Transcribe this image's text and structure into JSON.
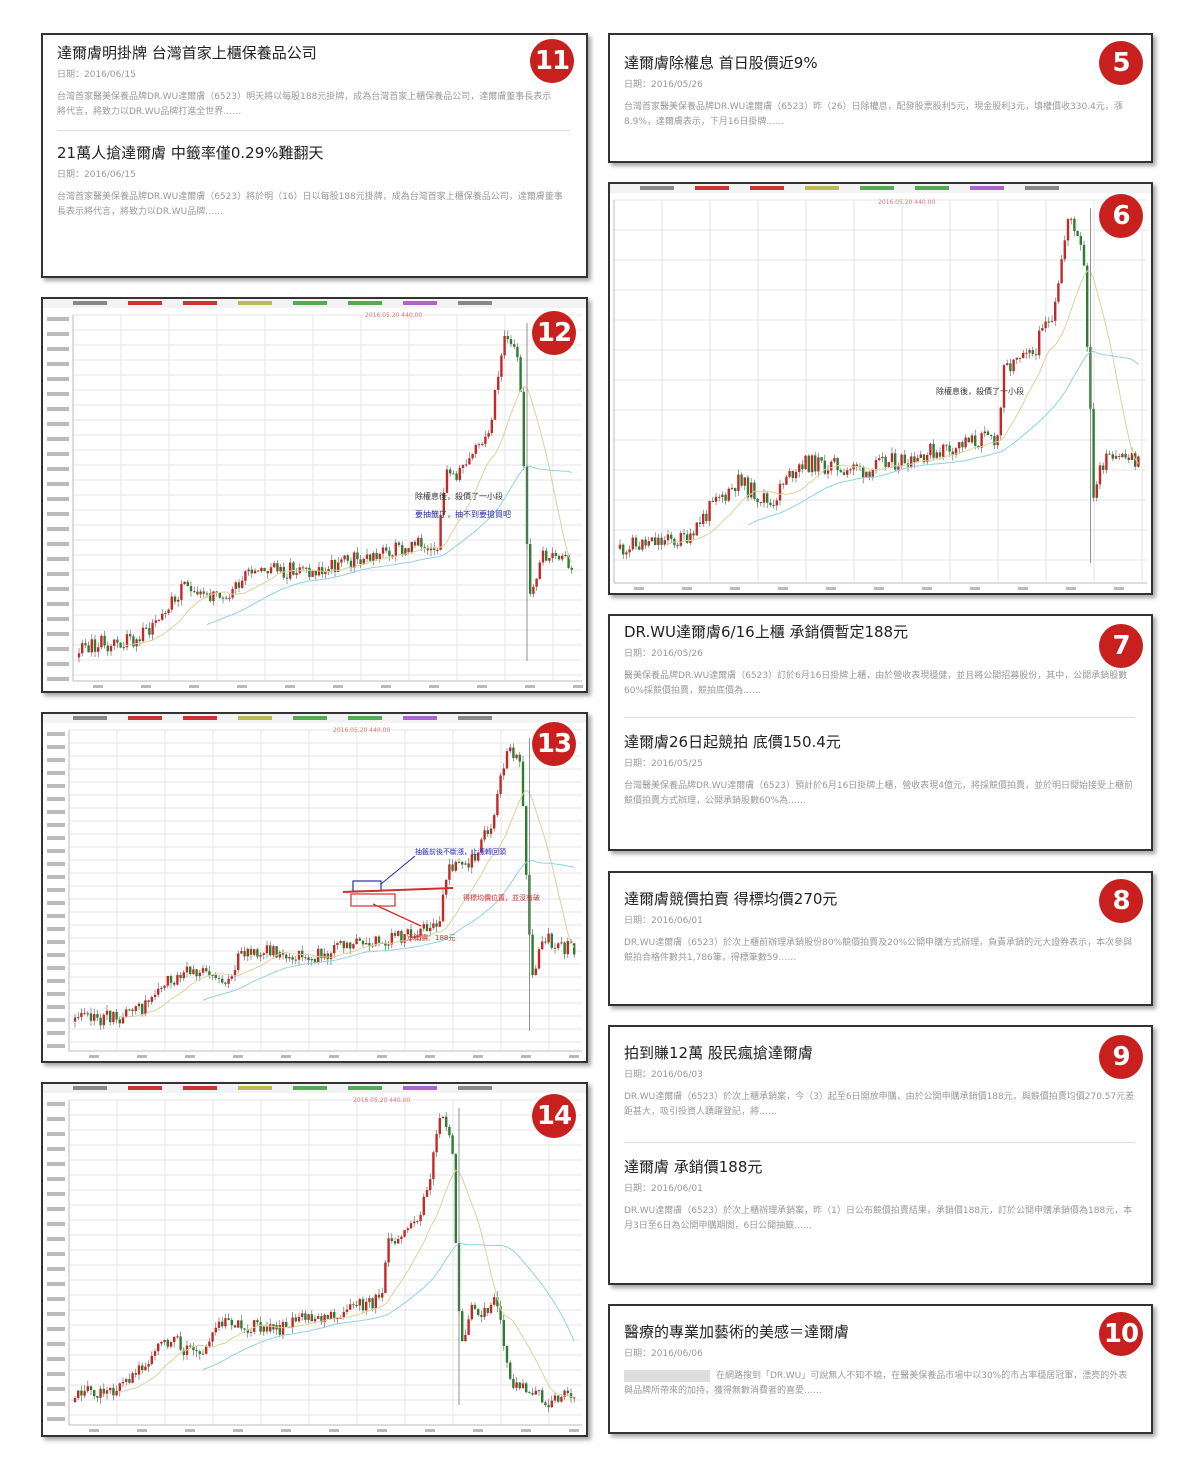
{
  "colors": {
    "badge": "#c8201e",
    "up": "#c62828",
    "down": "#2e7d32",
    "ma_short": "#d9d49a",
    "ma_long": "#8fd3e0",
    "note_blue": "#2b2ba8",
    "note_red": "#d32f2f"
  },
  "panels": {
    "p11": {
      "num": "11",
      "items": [
        {
          "title": "達爾膚明掛牌 台灣首家上櫃保養品公司",
          "date": "日期：2016/06/15",
          "body": "台灣首家醫美保養品牌DR.WU達爾膚（6523）明天將以每股188元掛牌，成為台灣首家上櫃保養品公司，達爾膚董事長表示將代言，將致力以DR.WU品牌打進全世界……"
        },
        {
          "title": "21萬人搶達爾膚 中籤率僅0.29%難翻天",
          "date": "日期：2016/06/15",
          "body": "台灣首家醫美保養品牌DR.WU達爾膚（6523）將於明（16）日以每股188元掛牌，成為台灣首家上櫃保養品公司，達爾膚董事長表示將代言，將致力以DR.WU品牌……"
        }
      ]
    },
    "p5": {
      "num": "5",
      "items": [
        {
          "title": "達爾膚除權息 首日股價近9%",
          "date": "日期：2016/05/26",
          "body": "台灣首家醫美保養品牌DR.WU達爾膚（6523）昨（26）日除權息，配發股票股利5元，現金股利3元，填權價收330.4元，漲8.9%，達爾膚表示，下月16日掛牌……"
        }
      ]
    },
    "p7": {
      "num": "7",
      "items": [
        {
          "title": "DR.WU達爾膚6/16上櫃 承銷價暫定188元",
          "date": "日期：2016/05/26",
          "body": "醫美保養品牌DR.WU達爾膚（6523）訂於6月16日掛牌上櫃，由於營收表現穩健，並且將公開招募股份，其中，公開承銷股數60%採競價拍賣，競拍底價為……"
        },
        {
          "title": "達爾膚26日起競拍 底價150.4元",
          "date": "日期：2016/05/25",
          "body": "台灣醫美保養品牌DR.WU達爾膚（6523）預計於6月16日掛牌上櫃，營收表現4億元，將採競價拍賣，並於明日開始接受上櫃前競價拍賣方式辦理，公開承銷股數60%為……"
        }
      ]
    },
    "p8": {
      "num": "8",
      "items": [
        {
          "title": "達爾膚競價拍賣 得標均價270元",
          "date": "日期：2016/06/01",
          "body": "DR.WU達爾膚（6523）於次上櫃前辦理承銷股份80%競價拍賣及20%公開申購方式辦理，負責承銷的元大證券表示，本次參與競拍合格件數共1,786筆，得標筆數59……"
        }
      ]
    },
    "p9": {
      "num": "9",
      "items": [
        {
          "title": "拍到賺12萬 股民瘋搶達爾膚",
          "date": "日期：2016/06/03",
          "body": "DR.WU達爾膚（6523）於次上櫃承銷案，今（3）起至6日開放申購，由於公開申購承銷價188元，與競價拍賣均價270.57元差距甚大，吸引投資人踴躍登記，將……"
        },
        {
          "title": "達爾膚 承銷價188元",
          "date": "日期：2016/06/01",
          "body": "DR.WU達爾膚（6523）於次上櫃辦理承銷案，昨（1）日公布競價拍賣結果，承銷價188元，訂於公開申購承銷價為188元，本月3日至6日為公開申購期間，6日公開抽籤……"
        }
      ]
    },
    "p10": {
      "num": "10",
      "items": [
        {
          "title": "醫療的專業加藝術的美感＝達爾膚",
          "date": "日期：2016/06/06",
          "body": "在網路搜到「DR.WU」可說無人不知不曉，在醫美保養品市場中以30%的市占率穩居冠軍，漂亮的外表與品牌所帶來的加持，獲得無數消費者的喜愛……"
        }
      ]
    },
    "p6": {
      "num": "6",
      "annotations": {
        "peak": "2016.05.20  440.00",
        "note": "除權息後，殺價了一小段"
      }
    },
    "p12": {
      "num": "12",
      "annotations": {
        "peak": "2016.05.20  440.00",
        "note1": "除權息後，殺價了一小段",
        "note2": "要抽籤了，抽不到要搶買吧"
      }
    },
    "p13": {
      "num": "13",
      "annotations": {
        "peak": "2016.05.20  440.00",
        "note_blue": "抽籤前後不斷漲，止漲轉回頭",
        "note_red1": "得標均價位置，並沒有破",
        "note_red2": "承銷價：188元"
      }
    },
    "p14": {
      "num": "14",
      "annotations": {
        "peak": "2016.05.20  440.00"
      }
    }
  }
}
